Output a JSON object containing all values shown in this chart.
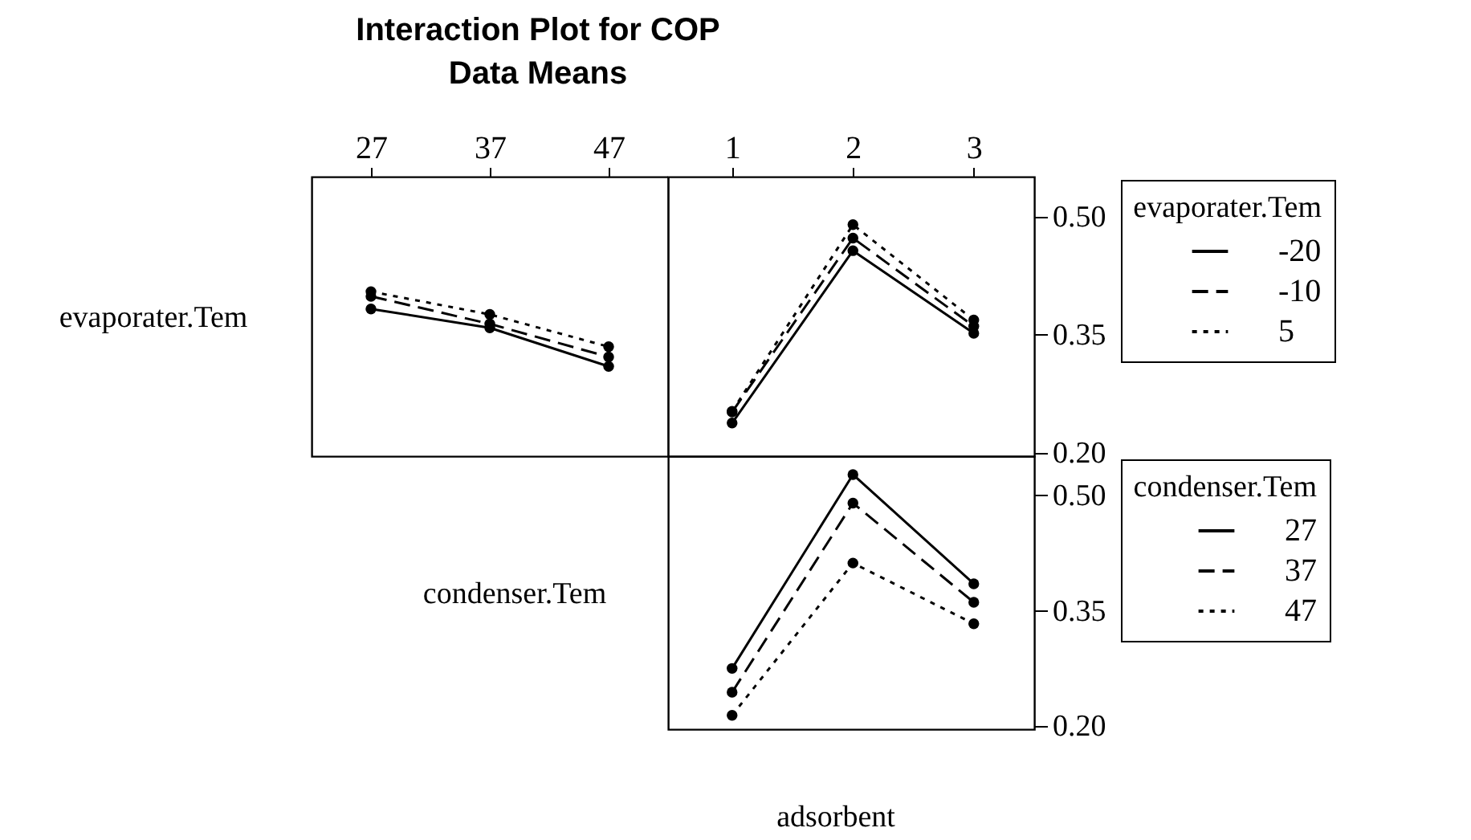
{
  "chart_data": [
    {
      "type": "line",
      "title": "Interaction Plot for COP",
      "subtitle": "Data Means",
      "ylabel": "evaporater.Tem",
      "x": [
        27,
        37,
        47
      ],
      "xlim": [
        22,
        52
      ],
      "xticks": [
        27,
        37,
        47
      ],
      "ylim": [
        0.195,
        0.55
      ],
      "tick_labels": "x",
      "marker": "circle",
      "legend": false,
      "series": [
        {
          "color": "#000000",
          "line_style": "solid",
          "values": [
            0.382,
            0.358,
            0.309
          ]
        },
        {
          "color": "#000000",
          "line_style": "dashed",
          "values": [
            0.398,
            0.363,
            0.321
          ]
        },
        {
          "color": "#000000",
          "line_style": "dotted",
          "values": [
            0.404,
            0.375,
            0.334
          ]
        }
      ]
    },
    {
      "type": "line",
      "x": [
        1,
        2,
        3
      ],
      "xlim": [
        0.47,
        3.5
      ],
      "xticks": [
        1,
        2,
        3
      ],
      "ylim": [
        0.195,
        0.55
      ],
      "yticks": [
        {
          "value": 0.2,
          "label": "0.20"
        },
        {
          "value": 0.35,
          "label": "0.35"
        },
        {
          "value": 0.5,
          "label": "0.50"
        }
      ],
      "marker": "circle",
      "legend": "right",
      "legend_title": "evaporater.Tem",
      "series": [
        {
          "name": "-20",
          "color": "#000000",
          "line_style": "solid",
          "values": [
            0.237,
            0.456,
            0.351
          ]
        },
        {
          "name": "-10",
          "color": "#000000",
          "line_style": "dashed",
          "values": [
            0.251,
            0.472,
            0.36
          ]
        },
        {
          "name": "5",
          "color": "#000000",
          "line_style": "dotted",
          "values": [
            0.252,
            0.489,
            0.368
          ]
        }
      ]
    },
    {
      "type": "line",
      "xlabel": "adsorbent",
      "ylabel": "condenser.Tem",
      "x": [
        1,
        2,
        3
      ],
      "xlim": [
        0.47,
        3.5
      ],
      "ylim": [
        0.195,
        0.55
      ],
      "yticks": [
        {
          "value": 0.2,
          "label": "0.20"
        },
        {
          "value": 0.35,
          "label": "0.35"
        },
        {
          "value": 0.5,
          "label": "0.50"
        }
      ],
      "tick_labels": "y",
      "marker": "circle",
      "legend": "right",
      "legend_title": "condenser.Tem",
      "series": [
        {
          "name": "27",
          "color": "#000000",
          "line_style": "solid",
          "values": [
            0.274,
            0.526,
            0.384
          ]
        },
        {
          "name": "37",
          "color": "#000000",
          "line_style": "dashed",
          "values": [
            0.243,
            0.489,
            0.36
          ]
        },
        {
          "name": "47",
          "color": "#000000",
          "line_style": "dotted",
          "values": [
            0.213,
            0.411,
            0.332
          ]
        }
      ]
    }
  ]
}
